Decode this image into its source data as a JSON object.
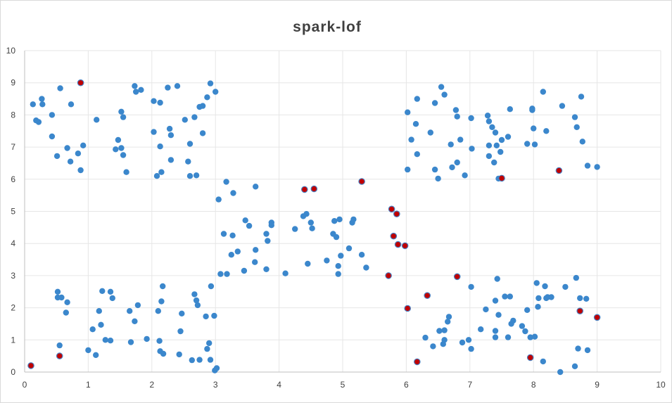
{
  "chart_data": {
    "type": "scatter",
    "title": "spark-lof",
    "xlabel": "",
    "ylabel": "",
    "xlim": [
      0,
      10
    ],
    "ylim": [
      0,
      10
    ],
    "x_ticks": [
      0,
      1,
      2,
      3,
      4,
      5,
      6,
      7,
      8,
      9,
      10
    ],
    "y_ticks": [
      0,
      1,
      2,
      3,
      4,
      5,
      6,
      7,
      8,
      9,
      10
    ],
    "grid": true,
    "legend": "none",
    "colors": {
      "normal": "#3b87cc",
      "outlier": "#c00000",
      "outlier_ring": "#4a7fc0",
      "grid": "#e6e6e6",
      "title": "#404040"
    },
    "series": [
      {
        "color": "#3b87cc",
        "points": [
          [
            0.13,
            8.33
          ],
          [
            0.18,
            7.83
          ],
          [
            0.22,
            7.78
          ],
          [
            0.27,
            8.5
          ],
          [
            0.28,
            8.33
          ],
          [
            0.43,
            8.0
          ],
          [
            0.43,
            7.33
          ],
          [
            0.51,
            6.72
          ],
          [
            0.56,
            8.83
          ],
          [
            0.67,
            6.97
          ],
          [
            0.72,
            6.55
          ],
          [
            0.73,
            8.33
          ],
          [
            0.84,
            6.8
          ],
          [
            0.88,
            6.28
          ],
          [
            0.92,
            7.05
          ],
          [
            1.13,
            7.85
          ],
          [
            1.43,
            6.93
          ],
          [
            1.47,
            7.22
          ],
          [
            1.52,
            6.97
          ],
          [
            1.52,
            8.1
          ],
          [
            1.55,
            7.93
          ],
          [
            1.55,
            6.75
          ],
          [
            1.6,
            6.22
          ],
          [
            1.73,
            8.9
          ],
          [
            1.75,
            8.72
          ],
          [
            1.83,
            8.78
          ],
          [
            2.03,
            8.43
          ],
          [
            2.03,
            7.47
          ],
          [
            2.08,
            6.1
          ],
          [
            2.13,
            8.38
          ],
          [
            2.13,
            7.02
          ],
          [
            2.15,
            6.22
          ],
          [
            2.25,
            8.85
          ],
          [
            2.28,
            7.57
          ],
          [
            2.3,
            7.37
          ],
          [
            2.3,
            6.6
          ],
          [
            2.4,
            8.9
          ],
          [
            2.52,
            7.85
          ],
          [
            2.57,
            6.55
          ],
          [
            2.6,
            7.1
          ],
          [
            2.6,
            6.1
          ],
          [
            2.67,
            7.93
          ],
          [
            2.7,
            6.12
          ],
          [
            2.75,
            8.25
          ],
          [
            2.8,
            8.28
          ],
          [
            2.8,
            7.43
          ],
          [
            2.87,
            8.55
          ],
          [
            2.92,
            8.98
          ],
          [
            3.0,
            8.72
          ],
          [
            0.52,
            2.5
          ],
          [
            0.52,
            2.32
          ],
          [
            0.58,
            2.32
          ],
          [
            0.55,
            0.83
          ],
          [
            0.65,
            1.85
          ],
          [
            0.67,
            2.17
          ],
          [
            1.0,
            0.68
          ],
          [
            1.07,
            1.33
          ],
          [
            1.12,
            0.53
          ],
          [
            1.17,
            1.9
          ],
          [
            1.2,
            1.47
          ],
          [
            1.22,
            2.52
          ],
          [
            1.27,
            1.0
          ],
          [
            1.35,
            2.5
          ],
          [
            1.35,
            0.98
          ],
          [
            1.38,
            2.3
          ],
          [
            1.65,
            1.9
          ],
          [
            1.67,
            0.93
          ],
          [
            1.73,
            1.58
          ],
          [
            1.78,
            2.08
          ],
          [
            1.92,
            1.03
          ],
          [
            2.1,
            1.9
          ],
          [
            2.12,
            0.97
          ],
          [
            2.13,
            0.65
          ],
          [
            2.15,
            2.2
          ],
          [
            2.17,
            2.67
          ],
          [
            2.18,
            0.57
          ],
          [
            2.43,
            0.55
          ],
          [
            2.45,
            1.27
          ],
          [
            2.47,
            1.82
          ],
          [
            2.63,
            0.37
          ],
          [
            2.67,
            2.42
          ],
          [
            2.7,
            2.23
          ],
          [
            2.72,
            2.08
          ],
          [
            2.75,
            0.38
          ],
          [
            2.85,
            1.73
          ],
          [
            2.87,
            0.72
          ],
          [
            2.9,
            0.9
          ],
          [
            2.92,
            0.38
          ],
          [
            2.93,
            2.67
          ],
          [
            2.98,
            1.75
          ],
          [
            2.99,
            0.05
          ],
          [
            3.02,
            0.12
          ],
          [
            3.05,
            5.37
          ],
          [
            3.08,
            3.05
          ],
          [
            3.13,
            4.3
          ],
          [
            3.17,
            5.92
          ],
          [
            3.18,
            3.05
          ],
          [
            3.25,
            3.65
          ],
          [
            3.27,
            4.25
          ],
          [
            3.28,
            5.57
          ],
          [
            3.35,
            3.75
          ],
          [
            3.45,
            3.15
          ],
          [
            3.47,
            4.72
          ],
          [
            3.53,
            4.55
          ],
          [
            3.62,
            3.42
          ],
          [
            3.63,
            5.77
          ],
          [
            3.63,
            3.8
          ],
          [
            3.8,
            4.3
          ],
          [
            3.8,
            3.2
          ],
          [
            3.82,
            4.08
          ],
          [
            3.88,
            4.65
          ],
          [
            3.88,
            4.57
          ],
          [
            4.1,
            3.07
          ],
          [
            4.25,
            4.45
          ],
          [
            4.38,
            4.85
          ],
          [
            4.43,
            4.92
          ],
          [
            4.45,
            3.37
          ],
          [
            4.5,
            4.65
          ],
          [
            4.52,
            4.47
          ],
          [
            4.75,
            3.47
          ],
          [
            4.85,
            4.3
          ],
          [
            4.87,
            4.7
          ],
          [
            4.9,
            4.2
          ],
          [
            4.93,
            3.3
          ],
          [
            4.93,
            3.05
          ],
          [
            4.95,
            4.75
          ],
          [
            4.97,
            3.62
          ],
          [
            5.1,
            3.85
          ],
          [
            5.15,
            4.65
          ],
          [
            5.17,
            4.75
          ],
          [
            5.3,
            3.65
          ],
          [
            5.37,
            3.25
          ],
          [
            6.02,
            8.08
          ],
          [
            6.08,
            7.23
          ],
          [
            6.15,
            7.72
          ],
          [
            6.17,
            8.5
          ],
          [
            6.17,
            6.78
          ],
          [
            6.02,
            6.3
          ],
          [
            6.38,
            7.45
          ],
          [
            6.45,
            8.37
          ],
          [
            6.45,
            6.3
          ],
          [
            6.5,
            6.02
          ],
          [
            6.55,
            8.87
          ],
          [
            6.6,
            8.63
          ],
          [
            6.7,
            7.08
          ],
          [
            6.72,
            6.37
          ],
          [
            6.78,
            8.15
          ],
          [
            6.8,
            7.95
          ],
          [
            6.8,
            6.52
          ],
          [
            6.85,
            7.23
          ],
          [
            6.92,
            6.12
          ],
          [
            7.02,
            7.9
          ],
          [
            7.03,
            6.95
          ],
          [
            7.28,
            7.98
          ],
          [
            7.3,
            7.8
          ],
          [
            7.3,
            7.05
          ],
          [
            7.3,
            6.72
          ],
          [
            7.35,
            7.62
          ],
          [
            7.38,
            6.52
          ],
          [
            7.4,
            7.45
          ],
          [
            7.42,
            7.05
          ],
          [
            7.45,
            6.02
          ],
          [
            7.48,
            6.85
          ],
          [
            7.5,
            7.22
          ],
          [
            7.6,
            7.32
          ],
          [
            7.63,
            8.18
          ],
          [
            7.9,
            7.1
          ],
          [
            7.98,
            8.2
          ],
          [
            7.98,
            8.15
          ],
          [
            8.0,
            7.58
          ],
          [
            8.02,
            7.08
          ],
          [
            8.15,
            8.72
          ],
          [
            8.2,
            7.5
          ],
          [
            8.45,
            8.28
          ],
          [
            8.65,
            7.93
          ],
          [
            8.68,
            7.62
          ],
          [
            8.75,
            8.57
          ],
          [
            8.77,
            7.17
          ],
          [
            8.85,
            6.42
          ],
          [
            9.0,
            6.38
          ],
          [
            6.3,
            1.07
          ],
          [
            6.42,
            0.8
          ],
          [
            6.52,
            1.28
          ],
          [
            6.58,
            0.87
          ],
          [
            6.6,
            1.0
          ],
          [
            6.6,
            1.3
          ],
          [
            6.65,
            1.57
          ],
          [
            6.67,
            1.72
          ],
          [
            6.88,
            0.92
          ],
          [
            6.98,
            1.0
          ],
          [
            7.02,
            0.72
          ],
          [
            7.02,
            2.65
          ],
          [
            7.17,
            1.33
          ],
          [
            7.25,
            1.95
          ],
          [
            7.4,
            1.08
          ],
          [
            7.4,
            1.28
          ],
          [
            7.4,
            2.22
          ],
          [
            7.43,
            2.9
          ],
          [
            7.45,
            1.78
          ],
          [
            7.55,
            2.35
          ],
          [
            7.6,
            1.08
          ],
          [
            7.63,
            2.35
          ],
          [
            7.65,
            1.5
          ],
          [
            7.68,
            1.6
          ],
          [
            7.82,
            1.43
          ],
          [
            7.87,
            1.27
          ],
          [
            7.9,
            1.93
          ],
          [
            7.95,
            1.08
          ],
          [
            8.02,
            1.1
          ],
          [
            8.05,
            2.77
          ],
          [
            8.07,
            2.03
          ],
          [
            8.08,
            2.3
          ],
          [
            8.15,
            0.33
          ],
          [
            8.18,
            2.67
          ],
          [
            8.2,
            2.3
          ],
          [
            8.22,
            2.33
          ],
          [
            8.28,
            2.33
          ],
          [
            8.42,
            0.0
          ],
          [
            8.5,
            2.65
          ],
          [
            8.65,
            0.18
          ],
          [
            8.67,
            2.93
          ],
          [
            8.7,
            0.73
          ],
          [
            8.73,
            2.3
          ],
          [
            8.83,
            2.28
          ],
          [
            8.85,
            0.68
          ]
        ]
      },
      {
        "color": "#c00000",
        "points": [
          [
            0.88,
            9.0
          ],
          [
            4.4,
            5.68
          ],
          [
            4.55,
            5.7
          ],
          [
            5.3,
            5.93
          ],
          [
            5.77,
            5.07
          ],
          [
            5.85,
            4.92
          ],
          [
            5.8,
            4.23
          ],
          [
            5.87,
            3.97
          ],
          [
            5.98,
            3.93
          ],
          [
            5.72,
            3.0
          ],
          [
            6.02,
            1.98
          ],
          [
            6.33,
            2.38
          ],
          [
            6.8,
            2.97
          ],
          [
            7.5,
            6.03
          ],
          [
            8.4,
            6.27
          ],
          [
            8.73,
            1.9
          ],
          [
            9.0,
            1.7
          ],
          [
            7.95,
            0.45
          ],
          [
            6.17,
            0.32
          ],
          [
            0.55,
            0.5
          ],
          [
            0.1,
            0.2
          ]
        ]
      }
    ]
  }
}
